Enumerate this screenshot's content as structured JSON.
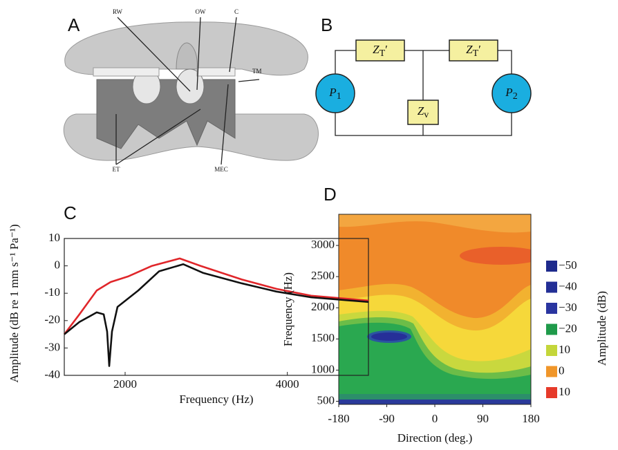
{
  "panel_a": {
    "label": "A",
    "labels": [
      "RW",
      "OW",
      "C",
      "TM",
      "ET",
      "MEC"
    ]
  },
  "panel_b": {
    "label": "B",
    "impedances": [
      {
        "symbol": "Z",
        "subscript": "T",
        "suffix": "′"
      },
      {
        "symbol": "Z",
        "subscript": "T",
        "suffix": "′"
      },
      {
        "symbol": "Z",
        "subscript": "v",
        "suffix": ""
      }
    ],
    "sources": [
      {
        "symbol": "P",
        "subscript": "1"
      },
      {
        "symbol": "P",
        "subscript": "2"
      }
    ]
  },
  "chart_data": [
    {
      "type": "line",
      "panel": "C",
      "xlabel": "Frequency (Hz)",
      "ylabel": "Amplitude (dB re 1 mm s⁻¹ Pa⁻¹)",
      "xlim": [
        1250,
        5000
      ],
      "xticks": [
        2000,
        4000
      ],
      "ylim": [
        -40,
        10
      ],
      "yticks": [
        10,
        0,
        -10,
        -20,
        -30,
        -40
      ],
      "series": [
        {
          "color": "#e0262a",
          "x": [
            1250,
            1437,
            1650,
            1821,
            2034,
            2332,
            2673,
            2929,
            3440,
            3866,
            4293,
            5000
          ],
          "values": [
            -25,
            -17.7,
            -9,
            -5.9,
            -3.9,
            0,
            2.7,
            0,
            -5,
            -8.4,
            -10.9,
            -12.7
          ]
        },
        {
          "color": "#111111",
          "x": [
            1250,
            1437,
            1650,
            1736,
            1778,
            1804,
            1838,
            1906,
            2162,
            2418,
            2716,
            2964,
            3440,
            3866,
            4293,
            5000
          ],
          "values": [
            -25,
            -20.5,
            -17,
            -17.7,
            -24,
            -36.6,
            -24,
            -15,
            -9,
            -2,
            0.6,
            -2.6,
            -6.4,
            -9.4,
            -11.5,
            -13.2
          ]
        }
      ]
    },
    {
      "type": "contour",
      "panel": "D",
      "xlabel": "Direction (deg.)",
      "ylabel": "Frequency (Hz)",
      "xlim": [
        -180,
        180
      ],
      "xticks": [
        -180,
        -90,
        0,
        90,
        180
      ],
      "ylim": [
        450,
        3500
      ],
      "yticks": [
        500,
        1000,
        1500,
        2000,
        2500,
        3000
      ],
      "legend": {
        "title": "Amplitude (dB)",
        "entries": [
          {
            "label": "−50",
            "color": "#1e2a8c"
          },
          {
            "label": "−40",
            "color": "#232f96"
          },
          {
            "label": "−30",
            "color": "#2a35a0"
          },
          {
            "label": "−20",
            "color": "#1f9a4a"
          },
          {
            "label": "10",
            "color": "#c4d63a"
          },
          {
            "label": "0",
            "color": "#f0962a"
          },
          {
            "label": "10",
            "color": "#e63a2a"
          }
        ]
      }
    }
  ]
}
